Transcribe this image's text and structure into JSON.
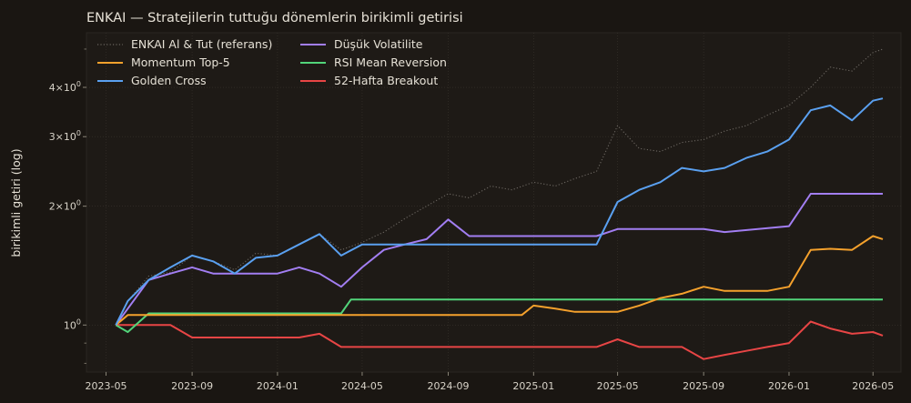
{
  "chart_data": {
    "type": "line",
    "title": "ENKAI — Stratejilerin tuttuğu dönemlerin birikimli getirisi",
    "xlabel": "",
    "ylabel": "birikimli getiri (log)",
    "y_scale": "log",
    "ylim": [
      0.76,
      5.5
    ],
    "xlim": [
      "2023-04-03",
      "2026-06-10"
    ],
    "grid": true,
    "legend_position": "top-left",
    "x_ticks": [
      "2023-05",
      "2023-09",
      "2024-01",
      "2024-05",
      "2024-09",
      "2025-01",
      "2025-05",
      "2025-09",
      "2026-01",
      "2026-05"
    ],
    "y_ticks": [
      {
        "value": 1,
        "label": "10^0"
      },
      {
        "value": 2,
        "label": "2×10^0"
      },
      {
        "value": 3,
        "label": "3×10^0"
      },
      {
        "value": 4,
        "label": "4×10^0"
      }
    ],
    "series": [
      {
        "name": "ENKAI Al & Tut (referans)",
        "color": "#6b6660",
        "style": "dotted",
        "x": [
          "2023-05-15",
          "2023-06-01",
          "2023-07-01",
          "2023-08-01",
          "2023-09-01",
          "2023-10-01",
          "2023-11-01",
          "2023-12-01",
          "2024-01-01",
          "2024-02-01",
          "2024-03-01",
          "2024-04-01",
          "2024-05-01",
          "2024-06-01",
          "2024-07-01",
          "2024-08-01",
          "2024-09-01",
          "2024-10-01",
          "2024-11-01",
          "2024-12-01",
          "2025-01-01",
          "2025-02-01",
          "2025-03-01",
          "2025-04-01",
          "2025-05-01",
          "2025-06-01",
          "2025-07-01",
          "2025-08-01",
          "2025-09-01",
          "2025-10-01",
          "2025-11-01",
          "2025-12-01",
          "2026-01-01",
          "2026-02-01",
          "2026-03-01",
          "2026-04-01",
          "2026-05-01",
          "2026-05-15"
        ],
        "values": [
          1.0,
          1.15,
          1.33,
          1.36,
          1.5,
          1.45,
          1.38,
          1.52,
          1.5,
          1.6,
          1.7,
          1.55,
          1.62,
          1.72,
          1.86,
          2.0,
          2.15,
          2.1,
          2.25,
          2.2,
          2.3,
          2.25,
          2.35,
          2.45,
          3.2,
          2.8,
          2.75,
          2.9,
          2.95,
          3.1,
          3.2,
          3.4,
          3.6,
          4.0,
          4.5,
          4.4,
          4.9,
          5.0
        ]
      },
      {
        "name": "Momentum Top-5",
        "color": "#f5a12c",
        "style": "solid",
        "x": [
          "2023-05-15",
          "2023-06-01",
          "2023-07-01",
          "2024-06-01",
          "2024-12-15",
          "2025-01-01",
          "2025-02-01",
          "2025-03-01",
          "2025-04-01",
          "2025-05-01",
          "2025-06-01",
          "2025-07-01",
          "2025-08-01",
          "2025-09-01",
          "2025-10-01",
          "2025-11-01",
          "2025-12-01",
          "2026-01-01",
          "2026-02-01",
          "2026-03-01",
          "2026-04-01",
          "2026-05-01",
          "2026-05-15"
        ],
        "values": [
          1.0,
          1.06,
          1.06,
          1.06,
          1.06,
          1.12,
          1.1,
          1.08,
          1.08,
          1.08,
          1.12,
          1.17,
          1.2,
          1.25,
          1.22,
          1.22,
          1.22,
          1.25,
          1.55,
          1.56,
          1.55,
          1.68,
          1.65
        ]
      },
      {
        "name": "Golden Cross",
        "color": "#5aa0f0",
        "style": "solid",
        "x": [
          "2023-05-15",
          "2023-06-01",
          "2023-07-01",
          "2023-08-01",
          "2023-09-01",
          "2023-10-01",
          "2023-11-01",
          "2023-12-01",
          "2024-01-01",
          "2024-02-01",
          "2024-03-01",
          "2024-04-01",
          "2024-05-01",
          "2024-09-01",
          "2025-01-01",
          "2025-04-01",
          "2025-05-01",
          "2025-06-01",
          "2025-07-01",
          "2025-08-01",
          "2025-09-01",
          "2025-10-01",
          "2025-11-01",
          "2025-12-01",
          "2026-01-01",
          "2026-02-01",
          "2026-03-01",
          "2026-04-01",
          "2026-05-01",
          "2026-05-15"
        ],
        "values": [
          1.0,
          1.15,
          1.3,
          1.4,
          1.5,
          1.45,
          1.35,
          1.48,
          1.5,
          1.6,
          1.7,
          1.5,
          1.6,
          1.6,
          1.6,
          1.6,
          2.05,
          2.2,
          2.3,
          2.5,
          2.45,
          2.5,
          2.65,
          2.75,
          2.95,
          3.5,
          3.6,
          3.3,
          3.7,
          3.75
        ]
      },
      {
        "name": "Düşük Volatilite",
        "color": "#a27ef2",
        "style": "solid",
        "x": [
          "2023-05-15",
          "2023-06-01",
          "2023-07-01",
          "2023-08-01",
          "2023-09-01",
          "2023-10-01",
          "2023-11-01",
          "2024-01-01",
          "2024-02-01",
          "2024-03-01",
          "2024-04-01",
          "2024-05-01",
          "2024-06-01",
          "2024-07-01",
          "2024-08-01",
          "2024-09-01",
          "2024-10-01",
          "2025-01-01",
          "2025-04-01",
          "2025-05-01",
          "2025-09-01",
          "2025-10-01",
          "2026-01-01",
          "2026-02-01",
          "2026-05-15"
        ],
        "values": [
          1.0,
          1.1,
          1.3,
          1.35,
          1.4,
          1.35,
          1.35,
          1.35,
          1.4,
          1.35,
          1.25,
          1.4,
          1.55,
          1.6,
          1.65,
          1.85,
          1.68,
          1.68,
          1.68,
          1.75,
          1.75,
          1.72,
          1.78,
          2.15,
          2.15
        ]
      },
      {
        "name": "RSI Mean Reversion",
        "color": "#52d47a",
        "style": "solid",
        "x": [
          "2023-05-15",
          "2023-06-01",
          "2023-07-01",
          "2023-12-01",
          "2024-04-01",
          "2024-04-15",
          "2024-05-01",
          "2025-01-01",
          "2026-01-01",
          "2026-05-15"
        ],
        "values": [
          1.0,
          0.96,
          1.07,
          1.07,
          1.07,
          1.16,
          1.16,
          1.16,
          1.16,
          1.16
        ]
      },
      {
        "name": "52-Hafta Breakout",
        "color": "#e84545",
        "style": "solid",
        "x": [
          "2023-05-15",
          "2023-06-01",
          "2023-08-01",
          "2023-09-01",
          "2023-10-01",
          "2024-02-01",
          "2024-03-01",
          "2024-04-01",
          "2025-03-01",
          "2025-04-01",
          "2025-05-01",
          "2025-06-01",
          "2025-08-01",
          "2025-09-01",
          "2025-10-01",
          "2025-11-01",
          "2025-12-01",
          "2026-01-01",
          "2026-02-01",
          "2026-03-01",
          "2026-04-01",
          "2026-05-01",
          "2026-05-15"
        ],
        "values": [
          1.0,
          1.0,
          1.0,
          0.93,
          0.93,
          0.93,
          0.95,
          0.88,
          0.88,
          0.88,
          0.92,
          0.88,
          0.88,
          0.82,
          0.84,
          0.86,
          0.88,
          0.9,
          1.02,
          0.98,
          0.95,
          0.96,
          0.94
        ]
      }
    ]
  }
}
